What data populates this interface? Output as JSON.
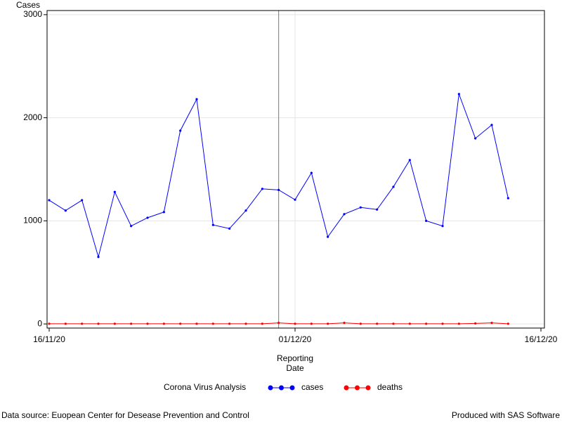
{
  "chart_data": {
    "type": "line",
    "y_label": "Cases",
    "x_label": [
      "Reporting",
      "Date"
    ],
    "legend_title": "Corona Virus Analysis",
    "footnote_left": "Data source: Euopean Center for Desease Prevention and Control",
    "footnote_right": "Produced with SAS Software",
    "x": [
      "16/11/20",
      "17/11/20",
      "18/11/20",
      "19/11/20",
      "20/11/20",
      "21/11/20",
      "22/11/20",
      "23/11/20",
      "24/11/20",
      "25/11/20",
      "26/11/20",
      "27/11/20",
      "28/11/20",
      "29/11/20",
      "30/11/20",
      "01/12/20",
      "02/12/20",
      "03/12/20",
      "04/12/20",
      "05/12/20",
      "06/12/20",
      "07/12/20",
      "08/12/20",
      "09/12/20",
      "10/12/20",
      "11/12/20",
      "12/12/20",
      "13/12/20",
      "14/12/20"
    ],
    "series": [
      {
        "name": "cases",
        "color": "#0000ff",
        "values": [
          1200,
          1100,
          1200,
          650,
          1280,
          950,
          1030,
          1085,
          1875,
          2180,
          960,
          925,
          1100,
          1310,
          1300,
          1205,
          1465,
          845,
          1065,
          1130,
          1110,
          1330,
          1590,
          1000,
          950,
          2230,
          1800,
          1930,
          1220
        ]
      },
      {
        "name": "deaths",
        "color": "#ff0000",
        "values": [
          2,
          2,
          2,
          2,
          2,
          2,
          2,
          2,
          2,
          2,
          2,
          2,
          2,
          2,
          10,
          2,
          2,
          2,
          10,
          2,
          2,
          2,
          2,
          2,
          2,
          2,
          5,
          10,
          2
        ]
      }
    ],
    "xlim": [
      "16/11/20",
      "16/12/20"
    ],
    "xticks": [
      "16/11/20",
      "01/12/20",
      "16/12/20"
    ],
    "ylim": [
      -40,
      3040
    ],
    "yticks": [
      0,
      1000,
      2000,
      3000
    ],
    "grid": true,
    "reference_line_x": "30/11/20",
    "legend_position": "bottom"
  }
}
